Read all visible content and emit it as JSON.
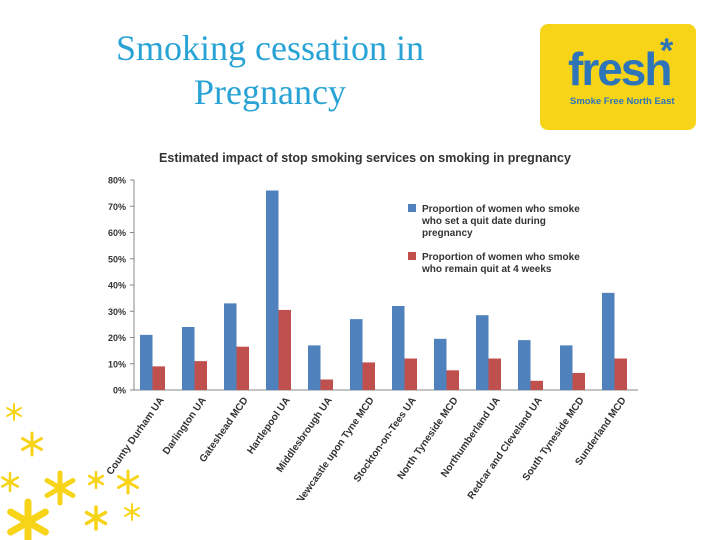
{
  "slide": {
    "title_line1": "Smoking cessation in",
    "title_line2": "Pregnancy"
  },
  "logo": {
    "word": "fresh",
    "star": "*",
    "tagline": "Smoke Free North East",
    "colors": {
      "background": "#f7d417",
      "text": "#2d74b8"
    }
  },
  "decoration": {
    "icon": "asterisk-icon",
    "color": "#f7d417"
  },
  "chart_data": {
    "type": "bar",
    "title": "Estimated impact of stop smoking services on smoking in pregnancy",
    "xlabel": "",
    "ylabel": "",
    "ylim": [
      0,
      80
    ],
    "yticks": [
      "0%",
      "10%",
      "20%",
      "30%",
      "40%",
      "50%",
      "60%",
      "70%",
      "80%"
    ],
    "grid": false,
    "legend_position": "top-right",
    "categories": [
      "County Durham UA",
      "Darlington UA",
      "Gateshead MCD",
      "Hartlepool UA",
      "Middlesbrough UA",
      "Newcastle upon Tyne MCD",
      "Stockton-on-Tees UA",
      "North Tyneside MCD",
      "Northumberland UA",
      "Redcar and Cleveland UA",
      "South Tyneside MCD",
      "Sunderland MCD"
    ],
    "series": [
      {
        "name": "Proportion of women who smoke who set a quit date during pregnancy",
        "legend_lines": [
          "Proportion of women who smoke",
          "who set a quit date during",
          "pregnancy"
        ],
        "color": "#4f81bd",
        "values": [
          21,
          24,
          33,
          76,
          17,
          27,
          32,
          19.5,
          28.5,
          19,
          17,
          37
        ]
      },
      {
        "name": "Proportion of women who smoke who remain quit at 4 weeks",
        "legend_lines": [
          "Proportion of women who smoke",
          "who remain quit at 4 weeks"
        ],
        "color": "#c0504d",
        "values": [
          9,
          11,
          16.5,
          30.5,
          4,
          10.5,
          12,
          7.5,
          12,
          3.5,
          6.5,
          12
        ]
      }
    ]
  }
}
